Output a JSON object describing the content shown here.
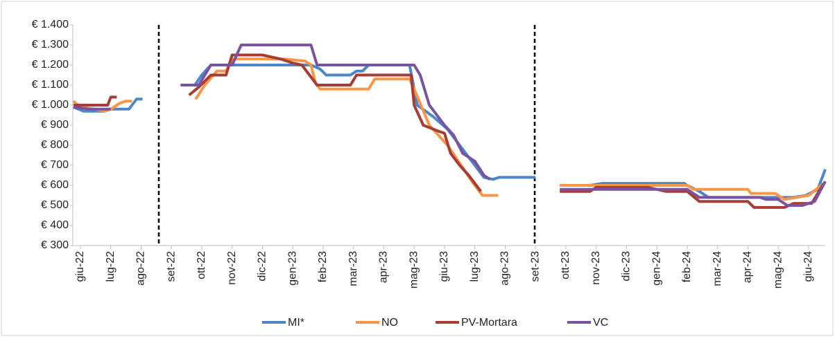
{
  "chart_data": {
    "type": "line",
    "xlim": [
      -0.25,
      24.55
    ],
    "xticks": [
      {
        "value": 0,
        "label": "giu-22"
      },
      {
        "value": 1,
        "label": "lug-22"
      },
      {
        "value": 2,
        "label": "ago-22"
      },
      {
        "value": 3,
        "label": "set-22"
      },
      {
        "value": 4,
        "label": "ott-22"
      },
      {
        "value": 5,
        "label": "nov-22"
      },
      {
        "value": 6,
        "label": "dic-22"
      },
      {
        "value": 7,
        "label": "gen-23"
      },
      {
        "value": 8,
        "label": "feb-23"
      },
      {
        "value": 9,
        "label": "mar-23"
      },
      {
        "value": 10,
        "label": "apr-23"
      },
      {
        "value": 11,
        "label": "mag-23"
      },
      {
        "value": 12,
        "label": "giu-23"
      },
      {
        "value": 13,
        "label": "lug-23"
      },
      {
        "value": 14,
        "label": "ago-23"
      },
      {
        "value": 15,
        "label": "set-23"
      },
      {
        "value": 16,
        "label": "ott-23"
      },
      {
        "value": 17,
        "label": "nov-23"
      },
      {
        "value": 18,
        "label": "dic-23"
      },
      {
        "value": 19,
        "label": "gen-24"
      },
      {
        "value": 20,
        "label": "feb-24"
      },
      {
        "value": 21,
        "label": "mar-24"
      },
      {
        "value": 22,
        "label": "apr-24"
      },
      {
        "value": 23,
        "label": "mag-24"
      },
      {
        "value": 24,
        "label": "giu-24"
      }
    ],
    "ylim": [
      300,
      1400
    ],
    "yticks": [
      {
        "value": 300,
        "label": "€ 300"
      },
      {
        "value": 400,
        "label": "€ 400"
      },
      {
        "value": 500,
        "label": "€ 500"
      },
      {
        "value": 600,
        "label": "€ 600"
      },
      {
        "value": 700,
        "label": "€ 700"
      },
      {
        "value": 800,
        "label": "€ 800"
      },
      {
        "value": 900,
        "label": "€ 900"
      },
      {
        "value": 1000,
        "label": "€ 1.000"
      },
      {
        "value": 1100,
        "label": "€ 1.100"
      },
      {
        "value": 1200,
        "label": "€ 1.200"
      },
      {
        "value": 1300,
        "label": "€ 1.300"
      },
      {
        "value": 1400,
        "label": "€ 1.400"
      }
    ],
    "legend": "bottom",
    "series": [
      {
        "name": "MI*",
        "color": "#4a86c8",
        "x": [
          -0.23,
          0.1,
          0.8,
          0.9,
          1.6,
          1.85,
          2.05,
          null,
          3.77,
          4.0,
          4.3,
          5.0,
          7.6,
          7.9,
          8.1,
          8.9,
          9.1,
          9.3,
          9.5,
          10.85,
          11.1,
          11.65,
          12.1,
          12.45,
          12.8,
          13.0,
          13.3,
          13.6,
          13.8,
          15.0,
          null,
          15.8,
          16.8,
          17.2,
          19.9,
          20.0,
          20.4,
          20.7,
          23.3,
          23.5,
          23.9,
          24.3,
          24.55
        ],
        "values": [
          990,
          970,
          970,
          980,
          980,
          1030,
          1030,
          null,
          1100,
          1150,
          1200,
          1200,
          1200,
          1180,
          1150,
          1150,
          1170,
          1170,
          1200,
          1200,
          1000,
          940,
          880,
          810,
          740,
          700,
          640,
          630,
          640,
          640,
          null,
          600,
          600,
          610,
          610,
          600,
          570,
          540,
          540,
          540,
          550,
          580,
          680
        ]
      },
      {
        "name": "NO",
        "color": "#f79646",
        "x": [
          -0.23,
          0.0,
          0.5,
          0.8,
          1.0,
          1.3,
          1.5,
          1.7,
          null,
          3.8,
          4.1,
          4.5,
          4.8,
          5.0,
          6.7,
          7.4,
          7.6,
          7.75,
          7.9,
          9.5,
          9.7,
          10.85,
          11.0,
          11.5,
          12.1,
          12.55,
          12.9,
          13.25,
          13.77,
          null,
          15.8,
          20.0,
          20.2,
          22.0,
          22.1,
          22.9,
          23.2,
          23.6,
          24.0,
          24.5
        ],
        "values": [
          1020,
          990,
          980,
          970,
          980,
          1010,
          1020,
          1020,
          null,
          1030,
          1100,
          1170,
          1170,
          1230,
          1230,
          1220,
          1200,
          1110,
          1080,
          1080,
          1130,
          1130,
          1080,
          900,
          800,
          700,
          620,
          550,
          550,
          null,
          600,
          600,
          580,
          580,
          560,
          560,
          530,
          540,
          550,
          610
        ]
      },
      {
        "name": "PV-Mortara",
        "color": "#a63c34",
        "x": [
          -0.23,
          0.9,
          1.0,
          1.2,
          null,
          3.58,
          3.9,
          4.3,
          4.8,
          5.0,
          6.0,
          6.6,
          7.0,
          7.3,
          7.8,
          8.9,
          9.1,
          10.9,
          11.0,
          11.3,
          11.8,
          12.0,
          12.2,
          12.5,
          12.8,
          13.2,
          null,
          15.8,
          16.8,
          17.0,
          18.7,
          19.3,
          20.0,
          20.4,
          22.0,
          22.2,
          23.2,
          23.5,
          24.1,
          24.5
        ],
        "values": [
          1000,
          1000,
          1040,
          1040,
          null,
          1050,
          1090,
          1150,
          1150,
          1250,
          1250,
          1230,
          1210,
          1200,
          1100,
          1100,
          1150,
          1150,
          1000,
          900,
          870,
          860,
          760,
          700,
          650,
          570,
          null,
          570,
          570,
          590,
          590,
          570,
          570,
          520,
          520,
          490,
          490,
          510,
          510,
          610
        ]
      },
      {
        "name": "VC",
        "color": "#7b52a0",
        "x": [
          -0.23,
          0.3,
          1.0,
          null,
          3.3,
          3.9,
          4.3,
          5.0,
          5.3,
          7.6,
          7.8,
          11.0,
          11.2,
          11.5,
          12.0,
          12.3,
          12.6,
          13.0,
          13.3,
          13.5,
          null,
          15.8,
          20.0,
          20.4,
          22.4,
          22.6,
          23.0,
          23.3,
          23.8,
          24.2,
          24.55
        ],
        "values": [
          990,
          980,
          980,
          null,
          1100,
          1100,
          1200,
          1200,
          1300,
          1300,
          1200,
          1200,
          1150,
          1000,
          900,
          850,
          760,
          720,
          650,
          630,
          null,
          580,
          580,
          540,
          540,
          530,
          530,
          500,
          500,
          520,
          620
        ]
      }
    ]
  }
}
